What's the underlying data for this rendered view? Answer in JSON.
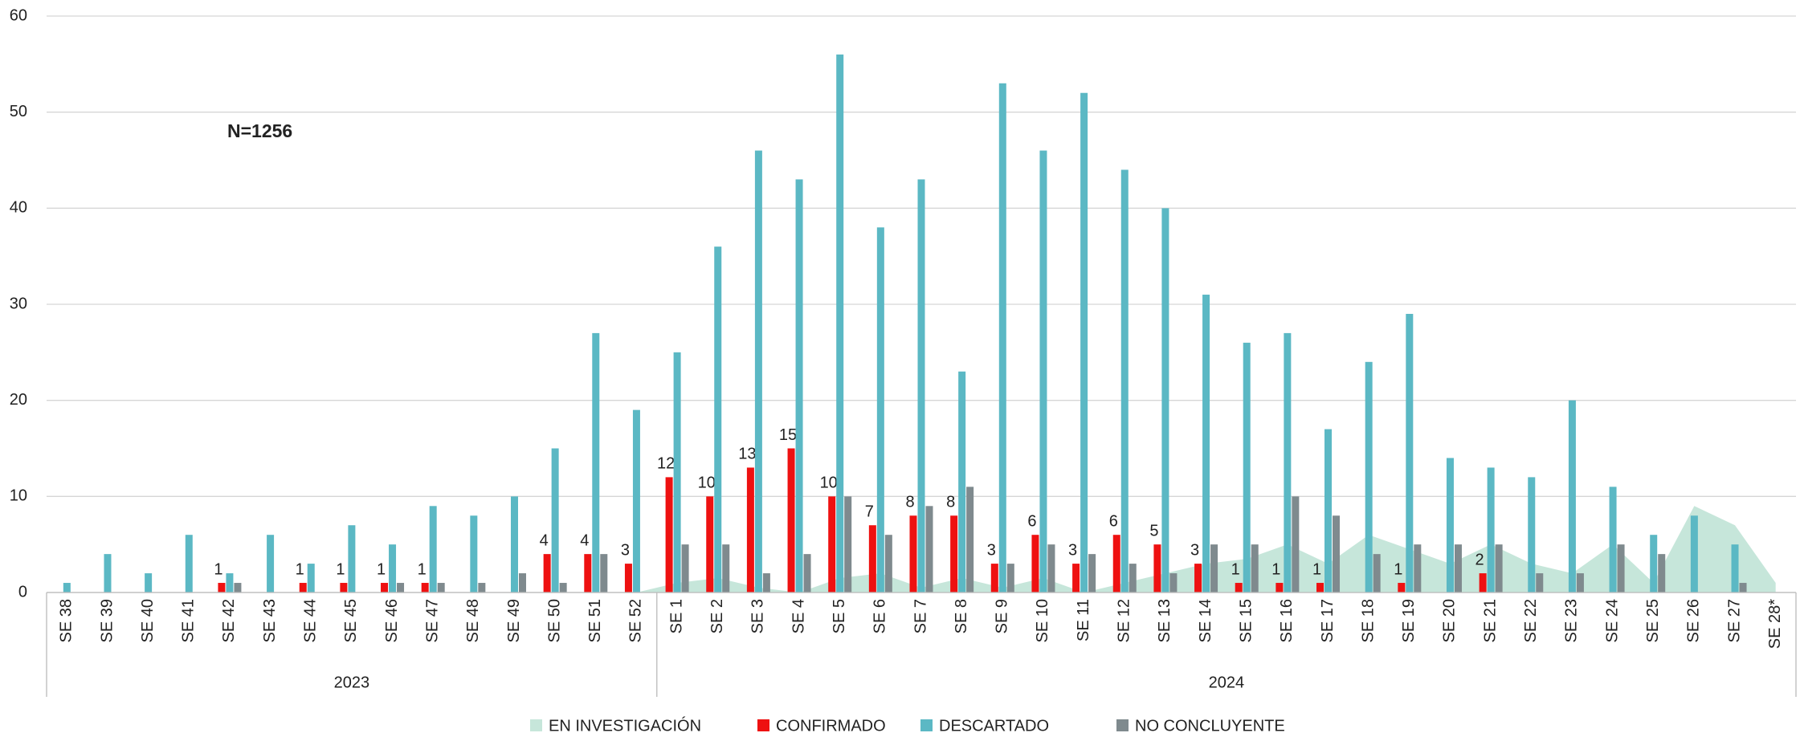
{
  "chart_data": {
    "type": "bar",
    "annotation": "N=1256",
    "groups": [
      {
        "name": "2023",
        "categories": [
          "SE 38",
          "SE 39",
          "SE 40",
          "SE 41",
          "SE 42",
          "SE 43",
          "SE 44",
          "SE 45",
          "SE 46",
          "SE 47",
          "SE 48",
          "SE 49",
          "SE 50",
          "SE 51",
          "SE 52"
        ]
      },
      {
        "name": "2024",
        "categories": [
          "SE 1",
          "SE 2",
          "SE 3",
          "SE 4",
          "SE 5",
          "SE 6",
          "SE 7",
          "SE 8",
          "SE 9",
          "SE 10",
          "SE 11",
          "SE 12",
          "SE 13",
          "SE 14",
          "SE 15",
          "SE 16",
          "SE 17",
          "SE 18",
          "SE 19",
          "SE 20",
          "SE 21",
          "SE 22",
          "SE 23",
          "SE 24",
          "SE 25",
          "SE 26",
          "SE 27",
          "SE 28*"
        ]
      }
    ],
    "series": [
      {
        "name": "EN INVESTIGACIÓN",
        "color": "#c6e6da",
        "kind": "area",
        "values": [
          0,
          0,
          0,
          0,
          0,
          0,
          0,
          0,
          0,
          0,
          0,
          0,
          0,
          0,
          0,
          1,
          1.5,
          0.5,
          0,
          1.5,
          2,
          0.5,
          1.5,
          0.5,
          1.5,
          0,
          1,
          2,
          3,
          3.5,
          5,
          3,
          6,
          4.5,
          3,
          5,
          3,
          2,
          5,
          1,
          9,
          7,
          1
        ]
      },
      {
        "name": "CONFIRMADO",
        "color": "#ee1111",
        "kind": "bar",
        "labels": true,
        "values": [
          null,
          null,
          null,
          null,
          1,
          null,
          1,
          1,
          1,
          1,
          null,
          null,
          4,
          4,
          3,
          12,
          10,
          13,
          15,
          10,
          7,
          8,
          8,
          3,
          6,
          3,
          6,
          5,
          3,
          1,
          1,
          1,
          null,
          1,
          null,
          2,
          null,
          null,
          null,
          null,
          null,
          null,
          null
        ]
      },
      {
        "name": "DESCARTADO",
        "color": "#5bb8c4",
        "kind": "bar",
        "values": [
          1,
          4,
          2,
          6,
          2,
          6,
          3,
          7,
          5,
          9,
          8,
          10,
          15,
          27,
          19,
          25,
          36,
          46,
          43,
          56,
          38,
          43,
          23,
          53,
          46,
          52,
          44,
          40,
          31,
          26,
          27,
          17,
          24,
          29,
          14,
          13,
          12,
          20,
          11,
          6,
          8,
          5,
          null
        ]
      },
      {
        "name": "NO CONCLUYENTE",
        "color": "#7f8a8e",
        "kind": "bar",
        "values": [
          null,
          null,
          null,
          null,
          1,
          null,
          null,
          null,
          1,
          1,
          1,
          2,
          1,
          4,
          null,
          5,
          5,
          2,
          4,
          10,
          6,
          9,
          11,
          3,
          5,
          4,
          3,
          2,
          5,
          5,
          10,
          8,
          4,
          5,
          5,
          5,
          2,
          2,
          5,
          4,
          null,
          1,
          null
        ]
      }
    ],
    "ylim": [
      0,
      60
    ],
    "yticks": [
      0,
      10,
      20,
      30,
      40,
      50,
      60
    ],
    "grid": true,
    "legend": "bottom"
  }
}
